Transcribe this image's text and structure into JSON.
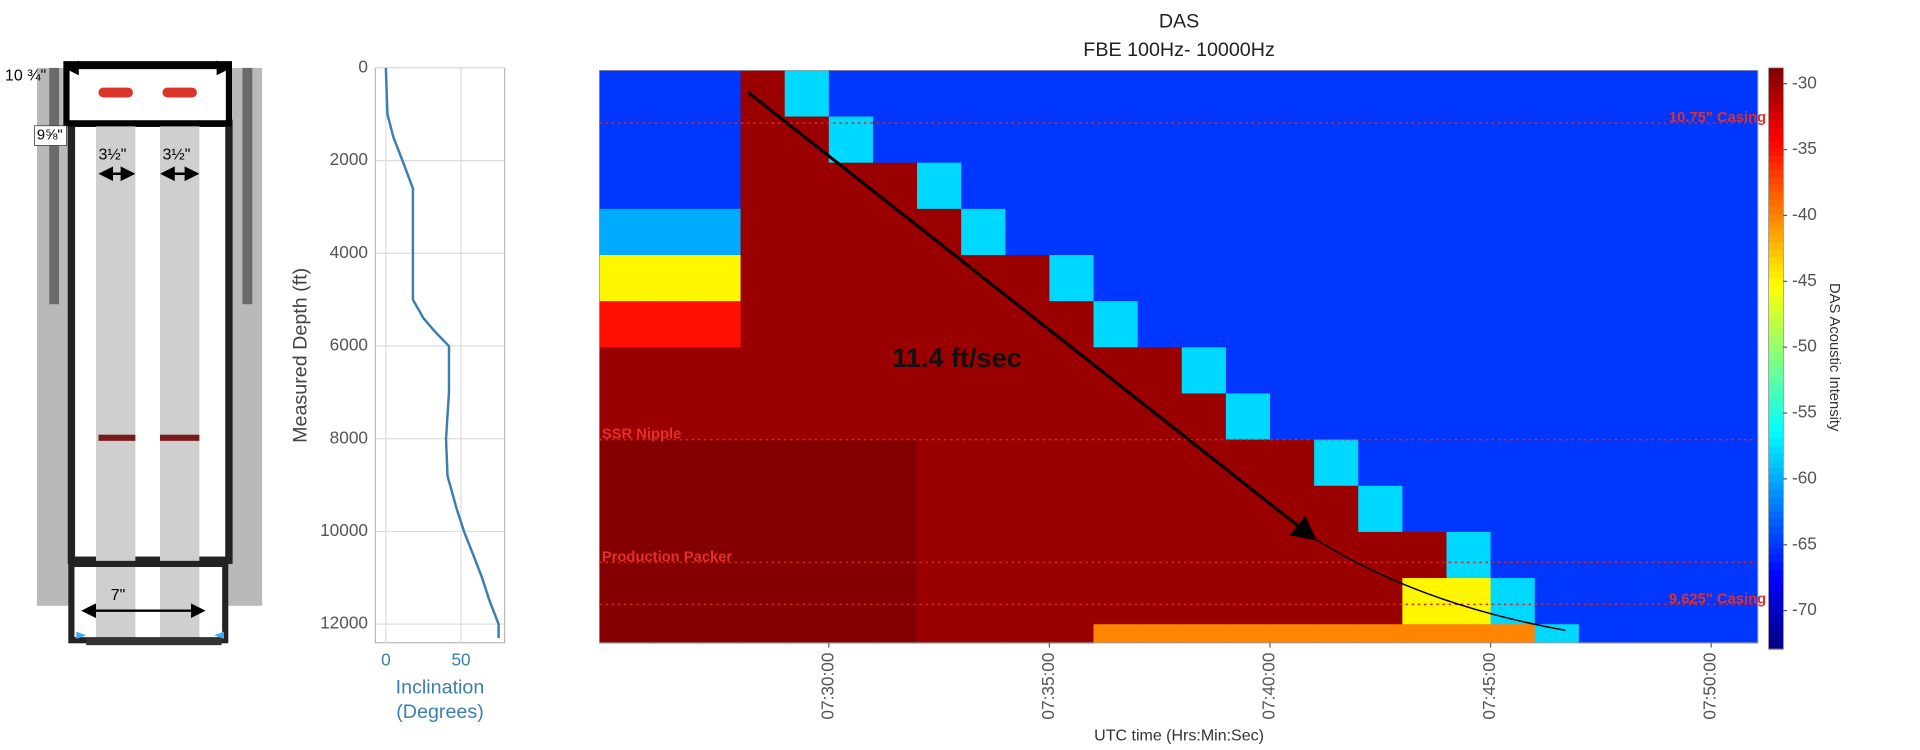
{
  "schematic": {
    "labels": [
      "10 ¾\"",
      "9⅝\"",
      "3½\"",
      "3½\"",
      "7\""
    ]
  },
  "chart_data": [
    {
      "type": "line",
      "y_label": "Measured Depth (ft)",
      "x_label": [
        "Inclination",
        "(Degrees)"
      ],
      "x": [
        0,
        1,
        5,
        11,
        18,
        18,
        18,
        25,
        33,
        42,
        42,
        40,
        41,
        47,
        52,
        58,
        64,
        69,
        75,
        75
      ],
      "values": [
        0,
        1000,
        1500,
        2000,
        2600,
        3500,
        5000,
        5400,
        5700,
        6000,
        7000,
        8000,
        8800,
        9500,
        10000,
        10500,
        11000,
        11500,
        12000,
        12300
      ],
      "color": "#3b7fb0",
      "xlim": [
        -7,
        79
      ],
      "xticks": [
        0,
        50
      ],
      "ylim": [
        0,
        12400
      ],
      "y_inverted": true,
      "yticks": [
        0,
        2000,
        4000,
        6000,
        8000,
        10000,
        12000
      ],
      "grid": true
    },
    {
      "type": "heatmap",
      "title": "DAS",
      "subtitle": "FBE 100Hz- 10000Hz",
      "x_label": "UTC time (Hrs:Min:Sec)",
      "colorbar_label": "DAS Acoustic Intensity",
      "colormap": "jet",
      "xlim": [
        24.8,
        51.05
      ],
      "ylim": [
        0,
        12400
      ],
      "y_inverted": true,
      "xticks": [
        {
          "value": 30,
          "label": "07:30:00"
        },
        {
          "value": 35,
          "label": "07:35:00"
        },
        {
          "value": 40,
          "label": "07:40:00"
        },
        {
          "value": 45,
          "label": "07:45:00"
        },
        {
          "value": 50,
          "label": "07:50:00"
        }
      ],
      "x_edges": [
        24.8,
        26,
        27,
        28,
        29,
        30,
        31,
        32,
        33,
        34,
        35,
        36,
        37,
        38,
        39,
        40,
        41,
        42,
        43,
        44,
        45,
        46,
        47,
        48,
        49,
        50,
        51.05
      ],
      "y_edges": [
        0,
        1000,
        2000,
        3000,
        4000,
        5000,
        6000,
        7000,
        8000,
        9000,
        10000,
        11000,
        12000,
        12400
      ],
      "z": [
        [
          -65,
          -65,
          -65,
          -30,
          -58,
          -65,
          -65,
          -65,
          -65,
          -65,
          -65,
          -65,
          -65,
          -65,
          -65,
          -65,
          -65,
          -65,
          -65,
          -65,
          -65,
          -65,
          -65,
          -65,
          -65,
          -65
        ],
        [
          -65,
          -65,
          -65,
          -30,
          -30,
          -58,
          -65,
          -65,
          -65,
          -65,
          -65,
          -65,
          -65,
          -65,
          -65,
          -65,
          -65,
          -65,
          -65,
          -65,
          -65,
          -65,
          -65,
          -65,
          -65,
          -65
        ],
        [
          -65,
          -65,
          -65,
          -30,
          -30,
          -30,
          -30,
          -58,
          -65,
          -65,
          -65,
          -65,
          -65,
          -65,
          -65,
          -65,
          -65,
          -65,
          -65,
          -65,
          -65,
          -65,
          -65,
          -65,
          -65,
          -65
        ],
        [
          -60,
          -60,
          -60,
          -30,
          -30,
          -30,
          -30,
          -30,
          -58,
          -65,
          -65,
          -65,
          -65,
          -65,
          -65,
          -65,
          -65,
          -65,
          -65,
          -65,
          -65,
          -65,
          -65,
          -65,
          -65,
          -65
        ],
        [
          -45,
          -45,
          -45,
          -30,
          -30,
          -30,
          -30,
          -30,
          -30,
          -30,
          -58,
          -65,
          -65,
          -65,
          -65,
          -65,
          -65,
          -65,
          -65,
          -65,
          -65,
          -65,
          -65,
          -65,
          -65,
          -65
        ],
        [
          -35,
          -35,
          -35,
          -30,
          -30,
          -30,
          -30,
          -30,
          -30,
          -30,
          -30,
          -58,
          -65,
          -65,
          -65,
          -65,
          -65,
          -65,
          -65,
          -65,
          -65,
          -65,
          -65,
          -65,
          -65,
          -65
        ],
        [
          -30,
          -30,
          -30,
          -30,
          -30,
          -30,
          -30,
          -30,
          -30,
          -30,
          -30,
          -30,
          -30,
          -58,
          -65,
          -65,
          -65,
          -65,
          -65,
          -65,
          -65,
          -65,
          -65,
          -65,
          -65,
          -65
        ],
        [
          -30,
          -30,
          -30,
          -30,
          -30,
          -30,
          -30,
          -30,
          -30,
          -30,
          -30,
          -30,
          -30,
          -30,
          -58,
          -65,
          -65,
          -65,
          -65,
          -65,
          -65,
          -65,
          -65,
          -65,
          -65,
          -65
        ],
        [
          -29,
          -29,
          -29,
          -29,
          -29,
          -29,
          -29,
          -30,
          -30,
          -30,
          -30,
          -30,
          -30,
          -30,
          -30,
          -30,
          -58,
          -65,
          -65,
          -65,
          -65,
          -65,
          -65,
          -65,
          -65,
          -65
        ],
        [
          -29,
          -29,
          -29,
          -29,
          -29,
          -29,
          -29,
          -30,
          -30,
          -30,
          -30,
          -30,
          -30,
          -30,
          -30,
          -30,
          -30,
          -58,
          -65,
          -65,
          -65,
          -65,
          -65,
          -65,
          -65,
          -65
        ],
        [
          -29,
          -29,
          -29,
          -29,
          -29,
          -29,
          -29,
          -30,
          -30,
          -30,
          -30,
          -30,
          -30,
          -30,
          -30,
          -30,
          -30,
          -30,
          -30,
          -58,
          -65,
          -65,
          -65,
          -65,
          -65,
          -65
        ],
        [
          -29,
          -29,
          -29,
          -29,
          -29,
          -29,
          -29,
          -30,
          -30,
          -30,
          -30,
          -30,
          -30,
          -30,
          -30,
          -30,
          -30,
          -30,
          -45,
          -45,
          -58,
          -65,
          -65,
          -65,
          -65,
          -65
        ],
        [
          -29,
          -29,
          -29,
          -29,
          -29,
          -29,
          -29,
          -30,
          -30,
          -30,
          -30,
          -40,
          -40,
          -40,
          -40,
          -40,
          -40,
          -40,
          -40,
          -40,
          -40,
          -58,
          -65,
          -65,
          -65,
          -65
        ]
      ],
      "clim": [
        -72.9,
        -28.8
      ],
      "cticks": [
        -30,
        -35,
        -40,
        -45,
        -50,
        -55,
        -60,
        -65,
        -70
      ],
      "annotations": [
        {
          "text": "10.75\" Casing",
          "depth": 1140,
          "position": "right"
        },
        {
          "text": "SSR Nipple",
          "depth": 8000,
          "position": "left"
        },
        {
          "text": "Production Packer",
          "depth": 10660,
          "position": "left"
        },
        {
          "text": "9.625\" Casing",
          "depth": 11570,
          "position": "right"
        }
      ],
      "arrow_label": "11.4 ft/sec"
    }
  ]
}
